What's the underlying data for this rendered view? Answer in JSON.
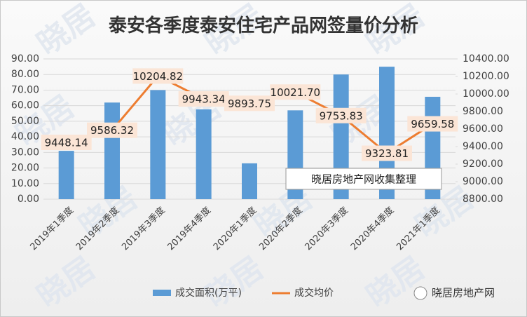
{
  "chart_data": {
    "type": "bar-line",
    "title": "泰安各季度泰安住宅产品网签量价分析",
    "categories": [
      "2019年1季度",
      "2019年2季度",
      "2019年3季度",
      "2019年4季度",
      "2020年1季度",
      "2020年2季度",
      "2020年3季度",
      "2020年4季度",
      "2021年1季度"
    ],
    "series": [
      {
        "name": "成交面积(万平)",
        "type": "bar",
        "color": "#5b9bd5",
        "values": [
          31,
          62,
          70,
          57.6,
          23,
          57,
          80,
          85,
          65.7
        ]
      },
      {
        "name": "成交均价",
        "type": "line",
        "axis": "y2",
        "color": "#ed7d31",
        "values": [
          9448.14,
          9586.32,
          10204.82,
          9943.34,
          9893.75,
          10021.7,
          9753.83,
          9323.81,
          9659.58
        ],
        "value_labels": [
          "9448.14",
          "9586.32",
          "10204.82",
          "9943.34",
          "9893.75",
          "10021.70",
          "9753.83",
          "9323.81",
          "9659.58"
        ]
      }
    ],
    "ylim": [
      0,
      90
    ],
    "yticks": [
      {
        "value": 0,
        "label": "0.00"
      },
      {
        "value": 10,
        "label": "10.00"
      },
      {
        "value": 20,
        "label": "20.00"
      },
      {
        "value": 30,
        "label": "30.00"
      },
      {
        "value": 40,
        "label": "40.00"
      },
      {
        "value": 50,
        "label": "50.00"
      },
      {
        "value": 60,
        "label": "60.00"
      },
      {
        "value": 70,
        "label": "70.00"
      },
      {
        "value": 80,
        "label": "80.00"
      },
      {
        "value": 90,
        "label": "90.00"
      }
    ],
    "y2lim": [
      8800,
      10400
    ],
    "y2ticks": [
      {
        "value": 8800,
        "label": "8800.00"
      },
      {
        "value": 9000,
        "label": "9000.00"
      },
      {
        "value": 9200,
        "label": "9200.00"
      },
      {
        "value": 9400,
        "label": "9400.00"
      },
      {
        "value": 9600,
        "label": "9600.00"
      },
      {
        "value": 9800,
        "label": "9800.00"
      },
      {
        "value": 10000,
        "label": "10000.00"
      },
      {
        "value": 10200,
        "label": "10200.00"
      },
      {
        "value": 10400,
        "label": "10400.00"
      }
    ],
    "annotation": "晓居房地产网收集整理",
    "watermark": "晓居",
    "source": "晓居房地产网",
    "legend": "bottom"
  }
}
